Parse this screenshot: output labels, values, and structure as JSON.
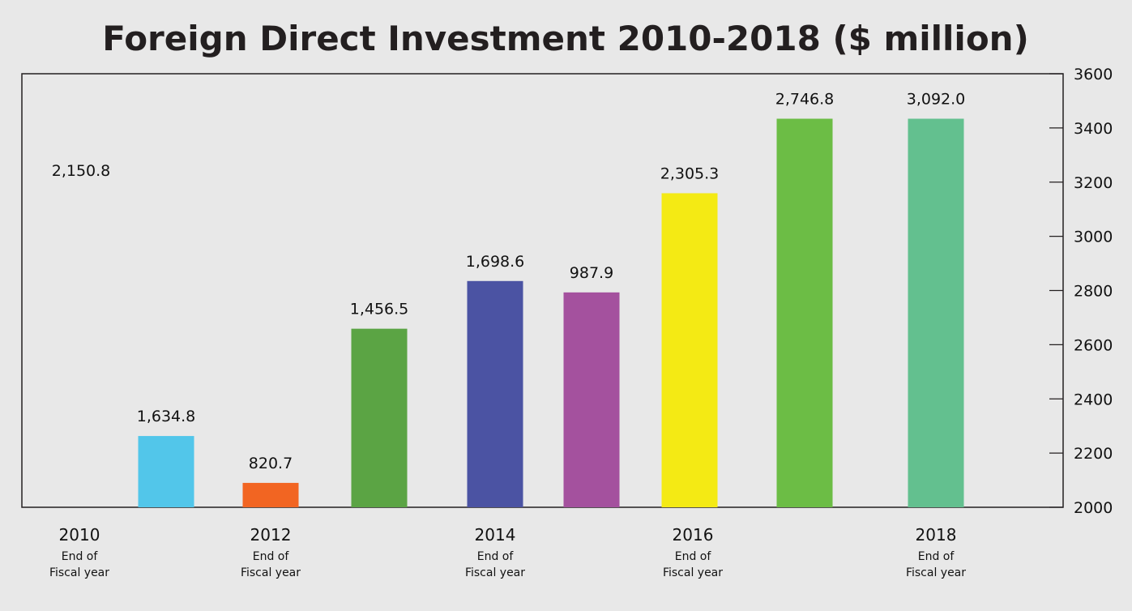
{
  "chart_data": {
    "type": "bar",
    "title": "Foreign Direct Investment 2010-2018 ($ million)",
    "xlabel": "",
    "ylabel": "",
    "ylim": [
      2000,
      3600
    ],
    "yticks": [
      "3600",
      "3400",
      "3200",
      "3000",
      "2800",
      "2600",
      "2400",
      "2200",
      "2000"
    ],
    "ytick_values": [
      3600,
      3400,
      3200,
      3000,
      2800,
      2600,
      2400,
      2200,
      2000
    ],
    "y_axis_side": "right",
    "grid": false,
    "legend": "none",
    "value_labels": [
      "2,150.8",
      "1,634.8",
      "820.7",
      "1,456.5",
      "1,698.6",
      "987.9",
      "2,305.3",
      "2,746.8",
      "3,092.0"
    ],
    "values": [
      2150.8,
      1634.8,
      820.7,
      1456.5,
      1698.6,
      987.9,
      2305.3,
      2746.8,
      3092.0
    ],
    "bar_heights_on_axis": [
      null,
      2263,
      2090,
      2659,
      2835,
      2793,
      3159,
      3434,
      3434
    ],
    "colors": [
      null,
      "#52c6ea",
      "#f26522",
      "#5ba444",
      "#4b53a3",
      "#a4519e",
      "#f4ea14",
      "#6cbd45",
      "#63c08f"
    ],
    "x_labels": [
      {
        "year": "2010",
        "sub1": "End of",
        "sub2": "Fiscal year"
      },
      {
        "year": "2012",
        "sub1": "End of",
        "sub2": "Fiscal year"
      },
      {
        "year": "2014",
        "sub1": "End of",
        "sub2": "Fiscal year"
      },
      {
        "year": "2016",
        "sub1": "End of",
        "sub2": "Fiscal year"
      },
      {
        "year": "2018",
        "sub1": "End of",
        "sub2": "Fiscal year"
      }
    ]
  }
}
